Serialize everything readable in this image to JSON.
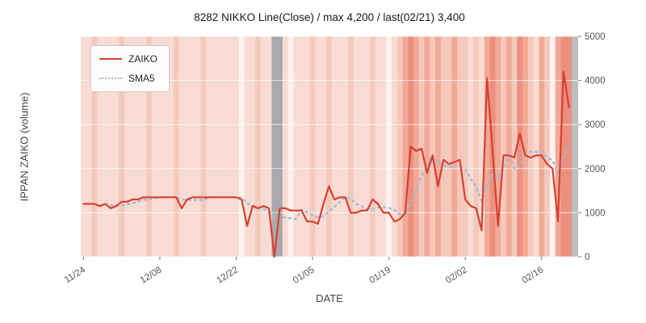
{
  "title": "8282 NIKKO Line(Close) / max 4,200 / last(02/21) 3,400",
  "axes": {
    "xlabel": "DATE",
    "ylabel": "IPPAN ZAIKO (volume)"
  },
  "legend": [
    {
      "label": "ZAIKO",
      "color": "#d8402f",
      "line_style": "solid"
    },
    {
      "label": "SMA5",
      "color": "#9cbcd8",
      "line_style": "dotted"
    }
  ],
  "chart_data": {
    "type": "line",
    "title": "8282 NIKKO Line(Close) / max 4,200 / last(02/21) 3,400",
    "xlabel": "DATE",
    "ylabel": "IPPAN ZAIKO (volume)",
    "ylim": [
      0,
      5000
    ],
    "y_ticks": [
      0,
      1000,
      2000,
      3000,
      4000,
      5000
    ],
    "n_points": 90,
    "x_ticks": [
      {
        "index": 0,
        "label": "11/24"
      },
      {
        "index": 14,
        "label": "12/08"
      },
      {
        "index": 28,
        "label": "12/22"
      },
      {
        "index": 42,
        "label": "01/05"
      },
      {
        "index": 56,
        "label": "01/19"
      },
      {
        "index": 70,
        "label": "02/02"
      },
      {
        "index": 84,
        "label": "02/16"
      }
    ],
    "series": [
      {
        "name": "ZAIKO",
        "color": "#d8402f",
        "style": "solid",
        "values": [
          1200,
          1200,
          1200,
          1150,
          1200,
          1100,
          1150,
          1250,
          1250,
          1300,
          1300,
          1350,
          1350,
          1350,
          1350,
          1350,
          1350,
          1350,
          1100,
          1300,
          1350,
          1350,
          1350,
          1350,
          1350,
          1350,
          1350,
          1350,
          1350,
          1300,
          700,
          1150,
          1100,
          1150,
          1100,
          0,
          1100,
          1100,
          1050,
          1050,
          1050,
          800,
          800,
          750,
          1200,
          1600,
          1300,
          1350,
          1350,
          1000,
          1000,
          1050,
          1050,
          1300,
          1200,
          1000,
          1000,
          800,
          850,
          1000,
          2500,
          2400,
          2450,
          1900,
          2300,
          1600,
          2200,
          2100,
          2150,
          2200,
          1300,
          1150,
          1100,
          600,
          4050,
          2400,
          700,
          2300,
          2300,
          2250,
          2800,
          2300,
          2250,
          2300,
          2300,
          2100,
          2000,
          800,
          4200,
          3400
        ]
      },
      {
        "name": "SMA5",
        "color": "#9cbcd8",
        "style": "dotted",
        "derived": "5-day moving average of ZAIKO",
        "window": 5
      }
    ],
    "plot_bg": "#ebebee",
    "grid_color": "#ffffff",
    "background_bands": {
      "levels": "11211112111121111211112111111011211gg101112112111211101234323232232212134323432132034 4",
      "levels_note": "one char per day: 0=lightest..4=darkest red, g=gray holiday band",
      "sequence": "1121111211112111121111211111",
      "colors": {
        "0": "#fdf2ee",
        "1": "#f8dcd4",
        "2": "#f5c8bc",
        "3": "#f1a996",
        "4": "#ec8f7e",
        "g": "#a9a9ad"
      },
      "per_day": [
        "1",
        "1",
        "2",
        "1",
        "1",
        "1",
        "1",
        "2",
        "1",
        "1",
        "1",
        "1",
        "2",
        "1",
        "1",
        "1",
        "1",
        "2",
        "1",
        "1",
        "1",
        "1",
        "2",
        "1",
        "1",
        "1",
        "1",
        "1",
        "1",
        "0",
        "1",
        "1",
        "2",
        "1",
        "1",
        "g",
        "g",
        "1",
        "0",
        "1",
        "1",
        "1",
        "2",
        "1",
        "1",
        "2",
        "1",
        "1",
        "1",
        "2",
        "1",
        "1",
        "1",
        "2",
        "1",
        "1",
        "0",
        "1",
        "2",
        "3",
        "4",
        "3",
        "2",
        "3",
        "2",
        "3",
        "2",
        "2",
        "3",
        "2",
        "2",
        "1",
        "2",
        "1",
        "3",
        "4",
        "3",
        "2",
        "3",
        "2",
        "4",
        "3",
        "2",
        "1",
        "3",
        "2",
        "0",
        "3",
        "4",
        "4"
      ],
      "right_edge": "gray"
    }
  }
}
